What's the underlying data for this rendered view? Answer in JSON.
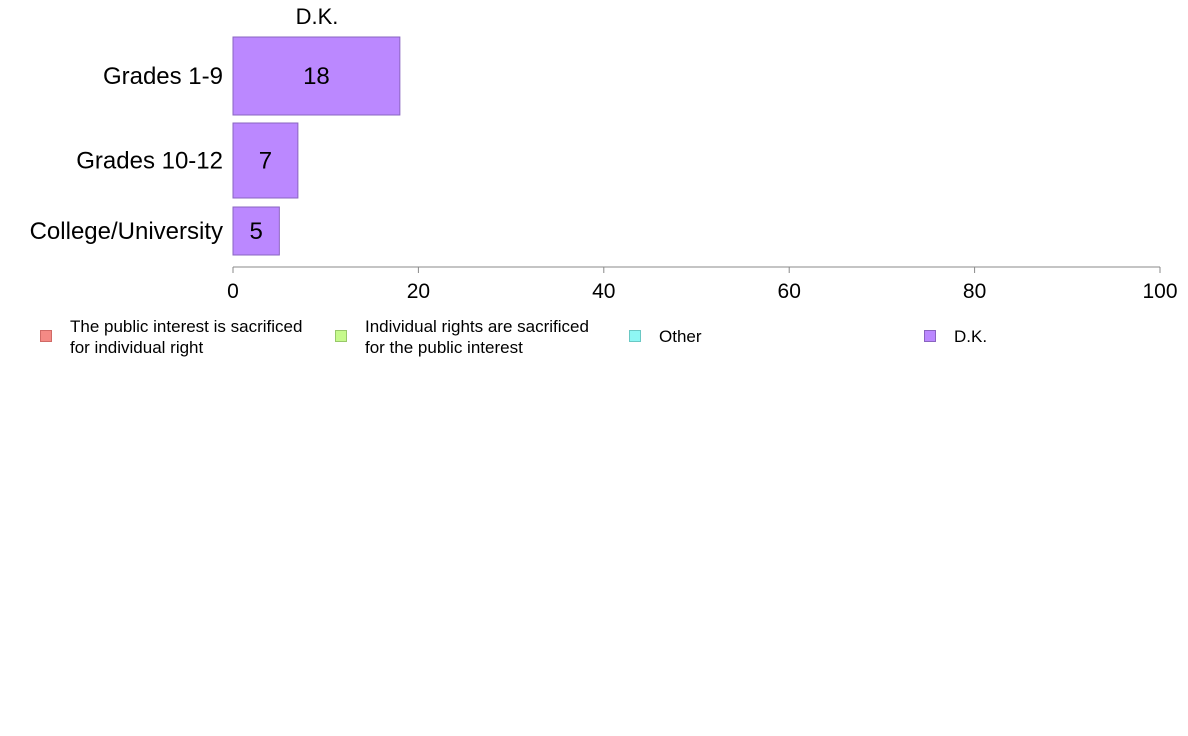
{
  "chart_data": {
    "type": "bar",
    "orientation": "horizontal",
    "title": "D.K.",
    "categories": [
      "Grades 1-9",
      "Grades 10-12",
      "College/University"
    ],
    "series": [
      {
        "name": "D.K.",
        "values": [
          18,
          7,
          5
        ],
        "color": "#bb88ff"
      }
    ],
    "data_labels": [
      "18",
      "7",
      "5"
    ],
    "xlim": [
      0,
      100
    ],
    "xticks": [
      0,
      20,
      40,
      60,
      80,
      100
    ],
    "xtick_labels": [
      "0",
      "20",
      "40",
      "60",
      "80",
      "100"
    ],
    "xlabel": "",
    "ylabel": "",
    "grid": false,
    "legend_position": "bottom"
  },
  "legend": {
    "items": [
      {
        "line1": "The public interest is sacrificed",
        "line2": "for individual right",
        "fill": "#f48a85",
        "border": "#d06a66"
      },
      {
        "line1": "Individual rights are sacrificed",
        "line2": "for the public interest",
        "fill": "#c6fa8c",
        "border": "#98c86a"
      },
      {
        "line1": "Other",
        "line2": "",
        "fill": "#8ef7f4",
        "border": "#6ac8c4"
      },
      {
        "line1": "D.K.",
        "line2": "",
        "fill": "#bb88ff",
        "border": "#8a64c0"
      }
    ]
  }
}
